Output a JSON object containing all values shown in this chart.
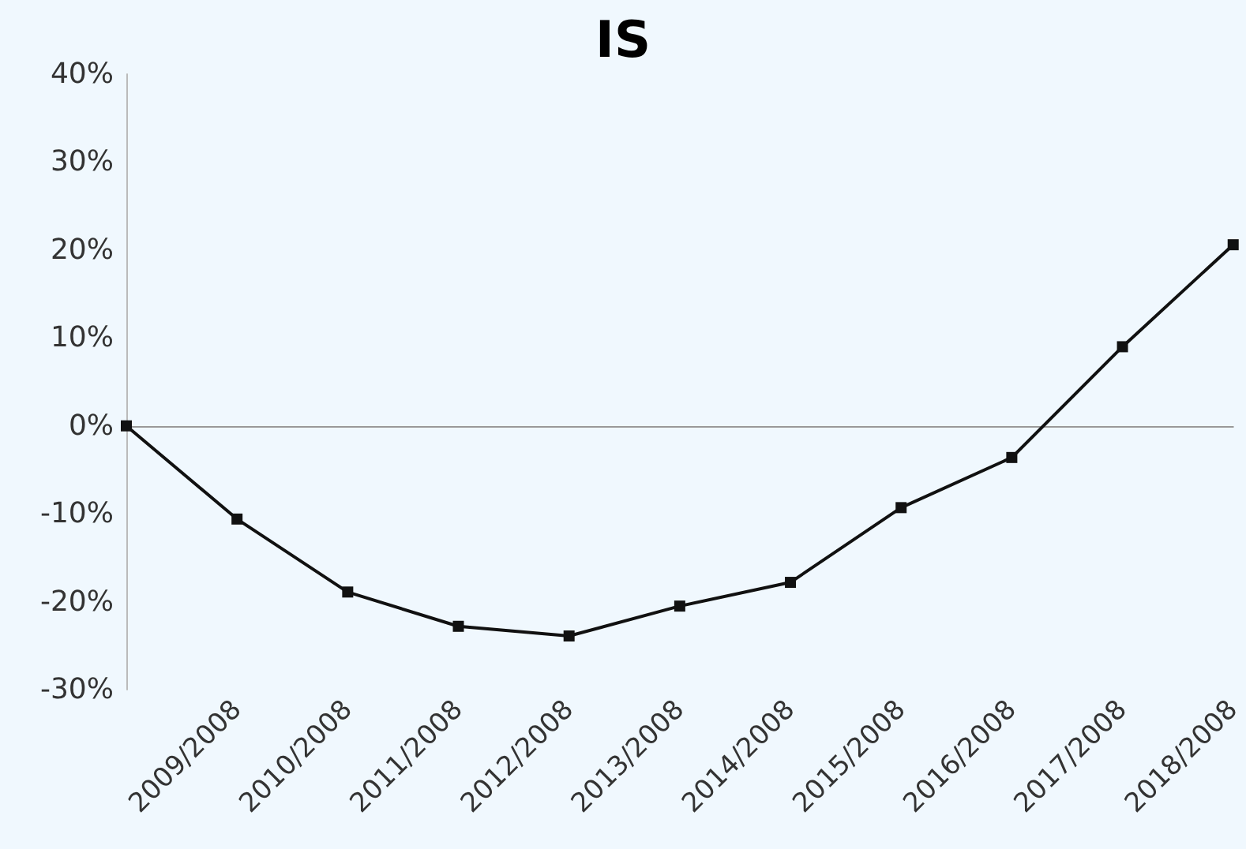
{
  "chart_data": {
    "type": "line",
    "title": "IS",
    "categories": [
      null,
      "2009/2008",
      "2010/2008",
      "2011/2008",
      "2012/2008",
      "2013/2008",
      "2014/2008",
      "2015/2008",
      "2016/2008",
      "2017/2008",
      "2018/2008"
    ],
    "series": [
      {
        "color": "#111111",
        "values": [
          0,
          -10.6,
          -18.9,
          -22.8,
          -23.9,
          -20.5,
          -17.8,
          -9.3,
          -3.6,
          9.0,
          20.6
        ]
      }
    ],
    "ylim": [
      -30,
      40
    ],
    "yticks": [
      {
        "value": -30,
        "label": "-30%"
      },
      {
        "value": -20,
        "label": "-20%"
      },
      {
        "value": -10,
        "label": "-10%"
      },
      {
        "value": 0,
        "label": "0%"
      },
      {
        "value": 10,
        "label": "10%"
      },
      {
        "value": 20,
        "label": "20%"
      },
      {
        "value": 30,
        "label": "30%"
      },
      {
        "value": 40,
        "label": "40%"
      }
    ],
    "marker": "square",
    "line_style": "solid"
  }
}
